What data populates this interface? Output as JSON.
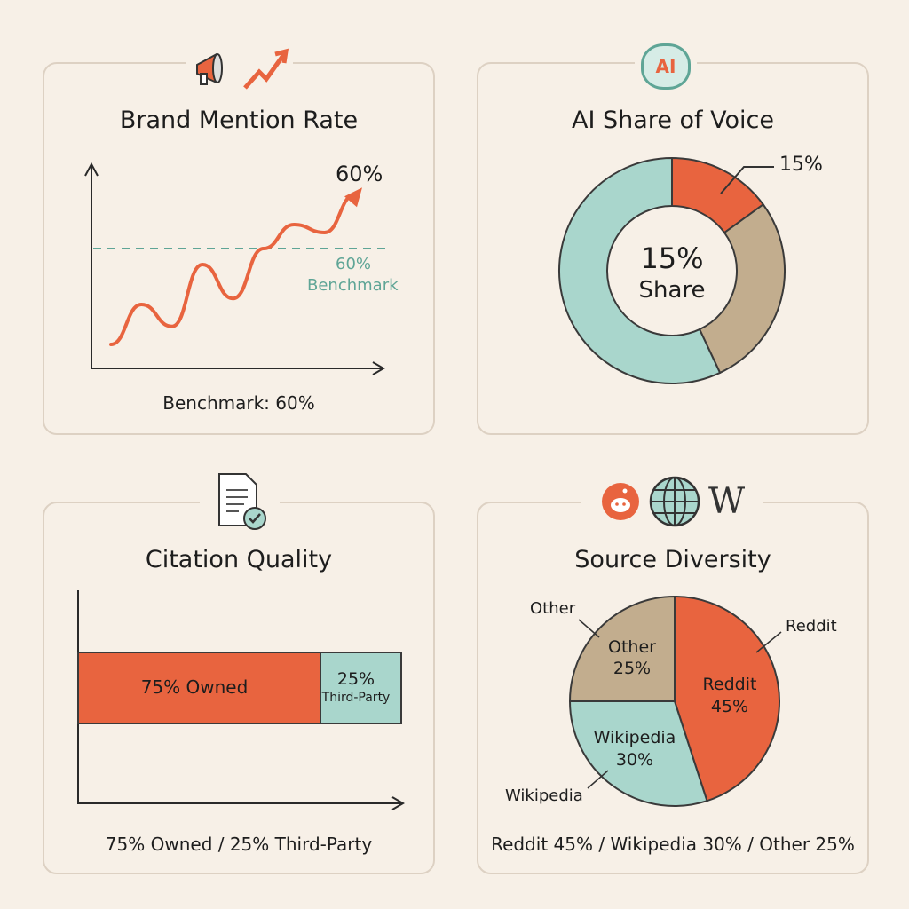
{
  "colors": {
    "orange": "#e8643f",
    "teal": "#a9d6cc",
    "tan": "#c2ad8e",
    "benchmark": "#5fa596",
    "ink": "#2a2a2a",
    "panel_border": "#ddd1c3"
  },
  "panels": [
    {
      "title": "Brand Mention Rate",
      "footer": "Benchmark: 60%",
      "icons": [
        "megaphone-icon",
        "trend-up-arrow-icon"
      ]
    },
    {
      "title": "AI Share of Voice",
      "footer": "",
      "icons": [
        "ai-brain-icon"
      ]
    },
    {
      "title": "Citation Quality",
      "footer": "75% Owned / 25% Third-Party",
      "icons": [
        "document-check-icon"
      ]
    },
    {
      "title": "Source Diversity",
      "footer": "Reddit 45% / Wikipedia 30% / Other 25%",
      "icons": [
        "reddit-icon",
        "globe-icon",
        "wikipedia-icon"
      ]
    }
  ],
  "icon_text": {
    "ai": "AI",
    "wiki": "W"
  },
  "chart_data": [
    {
      "type": "line",
      "title": "Brand Mention Rate",
      "end_label": "60%",
      "benchmark": {
        "value": 60,
        "label_value": "60%",
        "label_text": "Benchmark"
      },
      "x": [
        0,
        1,
        2,
        3,
        4,
        5,
        6,
        7,
        8
      ],
      "y": [
        12,
        32,
        21,
        52,
        35,
        60,
        72,
        68,
        87
      ],
      "ylim": [
        0,
        100
      ],
      "grid": false
    },
    {
      "type": "pie",
      "variant": "donut",
      "title": "AI Share of Voice",
      "center_value": "15%",
      "center_label": "Share",
      "callout": "15%",
      "slices": [
        {
          "label": "",
          "value": 15,
          "color": "#e8643f"
        },
        {
          "label": "",
          "value": 28,
          "color": "#c2ad8e"
        },
        {
          "label": "",
          "value": 57,
          "color": "#a9d6cc"
        }
      ]
    },
    {
      "type": "bar",
      "orientation": "horizontal",
      "stacked": true,
      "title": "Citation Quality",
      "series": [
        {
          "name": "Owned",
          "value": 75,
          "label": "75% Owned",
          "color": "#e8643f"
        },
        {
          "name": "Third-Party",
          "value": 25,
          "label_value": "25%",
          "label_name": "Third-Party",
          "color": "#a9d6cc"
        }
      ],
      "xlim": [
        0,
        100
      ]
    },
    {
      "type": "pie",
      "title": "Source Diversity",
      "slices": [
        {
          "label": "Reddit",
          "value": 45,
          "inner": "45%",
          "color": "#e8643f"
        },
        {
          "label": "Wikipedia",
          "value": 30,
          "inner": "30%",
          "color": "#a9d6cc"
        },
        {
          "label": "Other",
          "value": 25,
          "inner": "25%",
          "color": "#c2ad8e"
        }
      ]
    }
  ]
}
